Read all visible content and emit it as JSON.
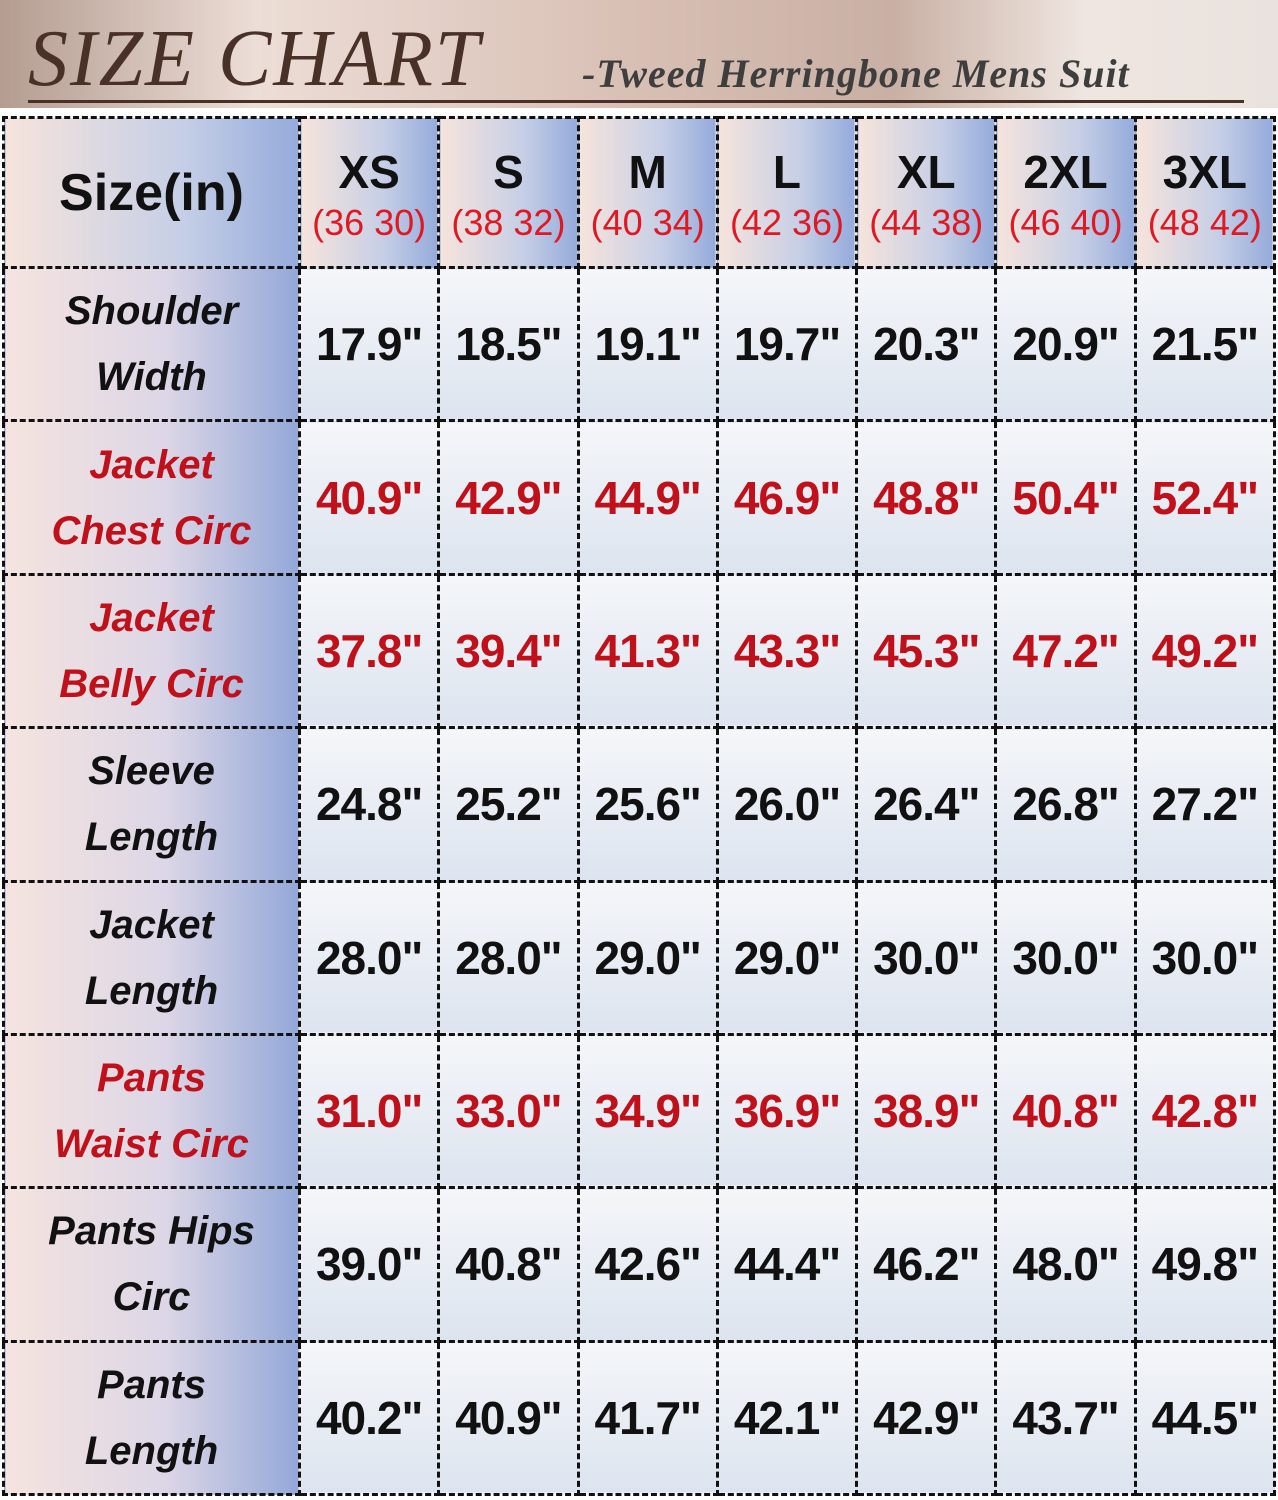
{
  "header": {
    "title": "SIZE CHART",
    "subtitle": "-Tweed Herringbone Mens Suit"
  },
  "colors": {
    "red": "#c0101a",
    "black": "#111111"
  },
  "table": {
    "corner": "Size(in)",
    "columns": [
      {
        "size": "XS",
        "fit": "(36 30)"
      },
      {
        "size": "S",
        "fit": "(38 32)"
      },
      {
        "size": "M",
        "fit": "(40 34)"
      },
      {
        "size": "L",
        "fit": "(42 36)"
      },
      {
        "size": "XL",
        "fit": "(44 38)"
      },
      {
        "size": "2XL",
        "fit": "(46 40)"
      },
      {
        "size": "3XL",
        "fit": "(48 42)"
      }
    ],
    "rows": [
      {
        "label": "Shoulder Width",
        "color": "#111111",
        "values": [
          "17.9\"",
          "18.5\"",
          "19.1\"",
          "19.7\"",
          "20.3\"",
          "20.9\"",
          "21.5\""
        ]
      },
      {
        "label": "Jacket Chest Circ",
        "color": "#c0101a",
        "values": [
          "40.9\"",
          "42.9\"",
          "44.9\"",
          "46.9\"",
          "48.8\"",
          "50.4\"",
          "52.4\""
        ]
      },
      {
        "label": "Jacket Belly Circ",
        "color": "#c0101a",
        "values": [
          "37.8\"",
          "39.4\"",
          "41.3\"",
          "43.3\"",
          "45.3\"",
          "47.2\"",
          "49.2\""
        ]
      },
      {
        "label": "Sleeve Length",
        "color": "#111111",
        "values": [
          "24.8\"",
          "25.2\"",
          "25.6\"",
          "26.0\"",
          "26.4\"",
          "26.8\"",
          "27.2\""
        ]
      },
      {
        "label": "Jacket Length",
        "color": "#111111",
        "values": [
          "28.0\"",
          "28.0\"",
          "29.0\"",
          "29.0\"",
          "30.0\"",
          "30.0\"",
          "30.0\""
        ]
      },
      {
        "label": "Pants Waist Circ",
        "color": "#c0101a",
        "values": [
          "31.0\"",
          "33.0\"",
          "34.9\"",
          "36.9\"",
          "38.9\"",
          "40.8\"",
          "42.8\""
        ]
      },
      {
        "label": "Pants Hips Circ",
        "color": "#111111",
        "values": [
          "39.0\"",
          "40.8\"",
          "42.6\"",
          "44.4\"",
          "46.2\"",
          "48.0\"",
          "49.8\""
        ]
      },
      {
        "label": "Pants Length",
        "color": "#111111",
        "values": [
          "40.2\"",
          "40.9\"",
          "41.7\"",
          "42.1\"",
          "42.9\"",
          "43.7\"",
          "44.5\""
        ]
      }
    ]
  }
}
